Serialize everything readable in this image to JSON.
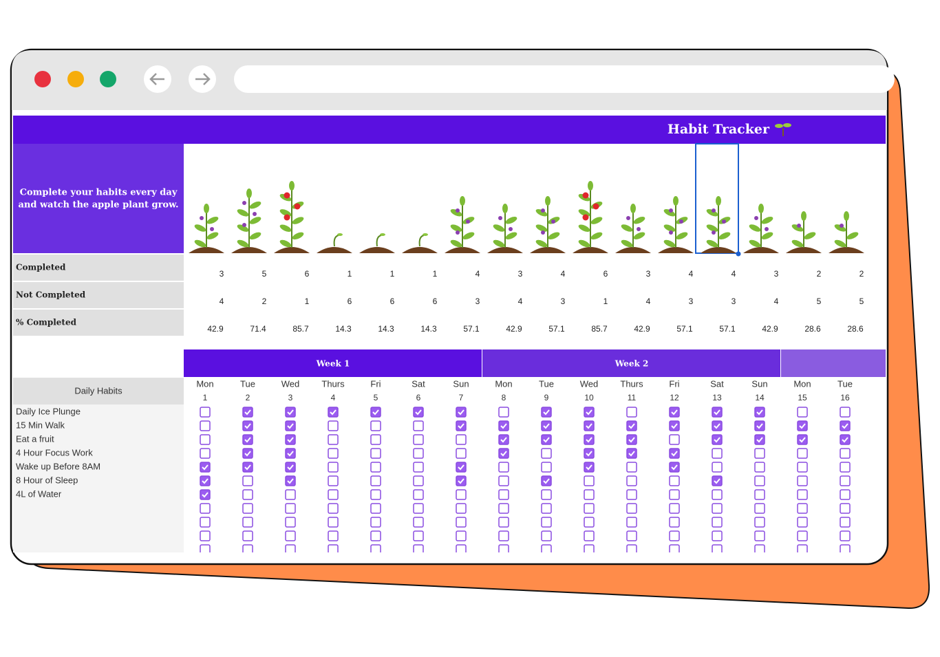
{
  "header": {
    "title": "Habit Tracker"
  },
  "banner": {
    "lines": [
      "Complete your habits every day",
      "and watch the apple plant grow."
    ]
  },
  "stats": {
    "labels": [
      "Completed",
      "Not Completed",
      "% Completed"
    ],
    "completed": [
      3,
      5,
      6,
      1,
      1,
      1,
      4,
      3,
      4,
      6,
      3,
      4,
      4,
      3,
      2,
      2
    ],
    "not_completed": [
      4,
      2,
      1,
      6,
      6,
      6,
      3,
      4,
      3,
      1,
      4,
      3,
      3,
      4,
      5,
      5
    ],
    "percent_completed": [
      42.9,
      71.4,
      85.7,
      14.3,
      14.3,
      14.3,
      57.1,
      42.9,
      57.1,
      85.7,
      42.9,
      57.1,
      57.1,
      42.9,
      28.6,
      28.6
    ]
  },
  "weeks": [
    "Week 1",
    "Week 2"
  ],
  "days": [
    {
      "name": "Mon",
      "date": 1
    },
    {
      "name": "Tue",
      "date": 2
    },
    {
      "name": "Wed",
      "date": 3
    },
    {
      "name": "Thurs",
      "date": 4
    },
    {
      "name": "Fri",
      "date": 5
    },
    {
      "name": "Sat",
      "date": 6
    },
    {
      "name": "Sun",
      "date": 7
    },
    {
      "name": "Mon",
      "date": 8
    },
    {
      "name": "Tue",
      "date": 9
    },
    {
      "name": "Wed",
      "date": 10
    },
    {
      "name": "Thurs",
      "date": 11
    },
    {
      "name": "Fri",
      "date": 12
    },
    {
      "name": "Sat",
      "date": 13
    },
    {
      "name": "Sun",
      "date": 14
    },
    {
      "name": "Mon",
      "date": 15
    },
    {
      "name": "Tue",
      "date": 16
    }
  ],
  "habits": {
    "header": "Daily Habits",
    "list": [
      {
        "name": "Daily Ice Plunge",
        "checks": [
          false,
          true,
          true,
          true,
          true,
          true,
          true,
          false,
          true,
          true,
          false,
          true,
          true,
          true,
          false,
          false
        ]
      },
      {
        "name": "15 Min Walk",
        "checks": [
          false,
          true,
          true,
          false,
          false,
          false,
          true,
          true,
          true,
          true,
          true,
          true,
          true,
          true,
          true,
          true
        ]
      },
      {
        "name": "Eat a fruit",
        "checks": [
          false,
          true,
          true,
          false,
          false,
          false,
          false,
          true,
          true,
          true,
          true,
          false,
          true,
          true,
          true,
          true
        ]
      },
      {
        "name": "4 Hour Focus Work",
        "checks": [
          false,
          true,
          true,
          false,
          false,
          false,
          false,
          true,
          false,
          true,
          true,
          true,
          false,
          false,
          false,
          false
        ]
      },
      {
        "name": "Wake up Before 8AM",
        "checks": [
          true,
          true,
          true,
          false,
          false,
          false,
          true,
          false,
          false,
          true,
          false,
          true,
          false,
          false,
          false,
          false
        ]
      },
      {
        "name": "8 Hour of Sleep",
        "checks": [
          true,
          false,
          true,
          false,
          false,
          false,
          true,
          false,
          true,
          false,
          false,
          false,
          true,
          false,
          false,
          false
        ]
      },
      {
        "name": "4L of Water",
        "checks": [
          true,
          false,
          false,
          false,
          false,
          false,
          false,
          false,
          false,
          false,
          false,
          false,
          false,
          false,
          false,
          false
        ]
      }
    ]
  }
}
